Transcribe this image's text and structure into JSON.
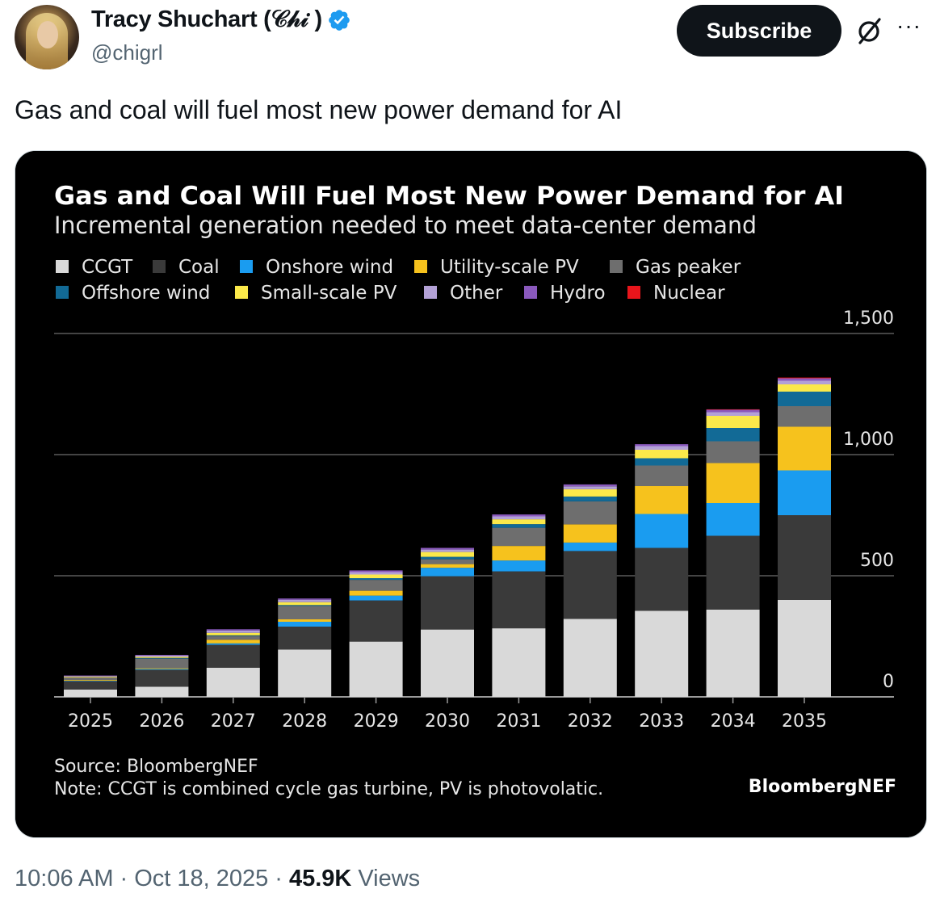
{
  "tweet": {
    "author_name": "Tracy Shuchart (𝒞𝒽𝒾 )",
    "handle": "@chigrl",
    "subscribe_label": "Subscribe",
    "more_label": "···",
    "text": "Gas and coal will fuel most new power demand for AI",
    "time": "10:06 AM",
    "date": "Oct 18, 2025",
    "separator": "·",
    "views_count": "45.9K",
    "views_label": "Views",
    "icons": {
      "verified": "verified-badge-icon",
      "grok": "grok-icon",
      "more": "more-icon"
    },
    "colors": {
      "verified": "#1d9bf0",
      "button": "#0f1419"
    }
  },
  "chart_data": {
    "type": "bar",
    "stacked": true,
    "title": "Gas and Coal Will Fuel Most New Power Demand for AI",
    "subtitle": "Incremental generation needed to meet data-center demand",
    "categories": [
      "2025",
      "2026",
      "2027",
      "2028",
      "2029",
      "2030",
      "2031",
      "2032",
      "2033",
      "2034",
      "2035"
    ],
    "ylim": [
      0,
      1500
    ],
    "yticks": [
      {
        "value": 0,
        "label": "0"
      },
      {
        "value": 500,
        "label": "500"
      },
      {
        "value": 1000,
        "label": "1,000"
      },
      {
        "value": 1500,
        "label": "1,500"
      }
    ],
    "grid": true,
    "legend_position": "top-left",
    "series": [
      {
        "name": "CCGT",
        "color": "#d9d9d9",
        "values": [
          30,
          42,
          120,
          195,
          228,
          278,
          283,
          322,
          355,
          360,
          400
        ]
      },
      {
        "name": "Coal",
        "color": "#3a3a3a",
        "values": [
          35,
          70,
          95,
          95,
          170,
          220,
          235,
          280,
          260,
          305,
          350
        ]
      },
      {
        "name": "Onshore wind",
        "color": "#1a9cf0",
        "values": [
          2,
          3,
          6,
          20,
          20,
          35,
          45,
          35,
          140,
          135,
          185
        ]
      },
      {
        "name": "Utility-scale PV",
        "color": "#f6c21d",
        "values": [
          3,
          3,
          15,
          10,
          20,
          15,
          60,
          75,
          115,
          165,
          180
        ]
      },
      {
        "name": "Gas peaker",
        "color": "#6e6e6e",
        "values": [
          10,
          40,
          15,
          55,
          45,
          20,
          75,
          95,
          85,
          90,
          85
        ]
      },
      {
        "name": "Offshore wind",
        "color": "#126a96",
        "values": [
          0,
          3,
          3,
          4,
          7,
          10,
          15,
          20,
          30,
          55,
          60
        ]
      },
      {
        "name": "Small-scale PV",
        "color": "#fbe94a",
        "values": [
          3,
          4,
          10,
          12,
          15,
          20,
          20,
          30,
          35,
          50,
          30
        ]
      },
      {
        "name": "Other",
        "color": "#b3a1d6",
        "values": [
          3,
          5,
          10,
          10,
          10,
          10,
          12,
          12,
          15,
          15,
          15
        ]
      },
      {
        "name": "Hydro",
        "color": "#8a59bd",
        "values": [
          2,
          3,
          5,
          5,
          7,
          7,
          8,
          8,
          8,
          10,
          10
        ]
      },
      {
        "name": "Nuclear",
        "color": "#e8151b",
        "values": [
          0,
          0,
          0,
          0,
          0,
          0,
          0,
          0,
          0,
          2,
          3
        ]
      }
    ],
    "source": "Source: BloombergNEF",
    "note": "Note: CCGT is combined cycle gas turbine, PV is photovolatic.",
    "brand": "BloombergNEF"
  }
}
